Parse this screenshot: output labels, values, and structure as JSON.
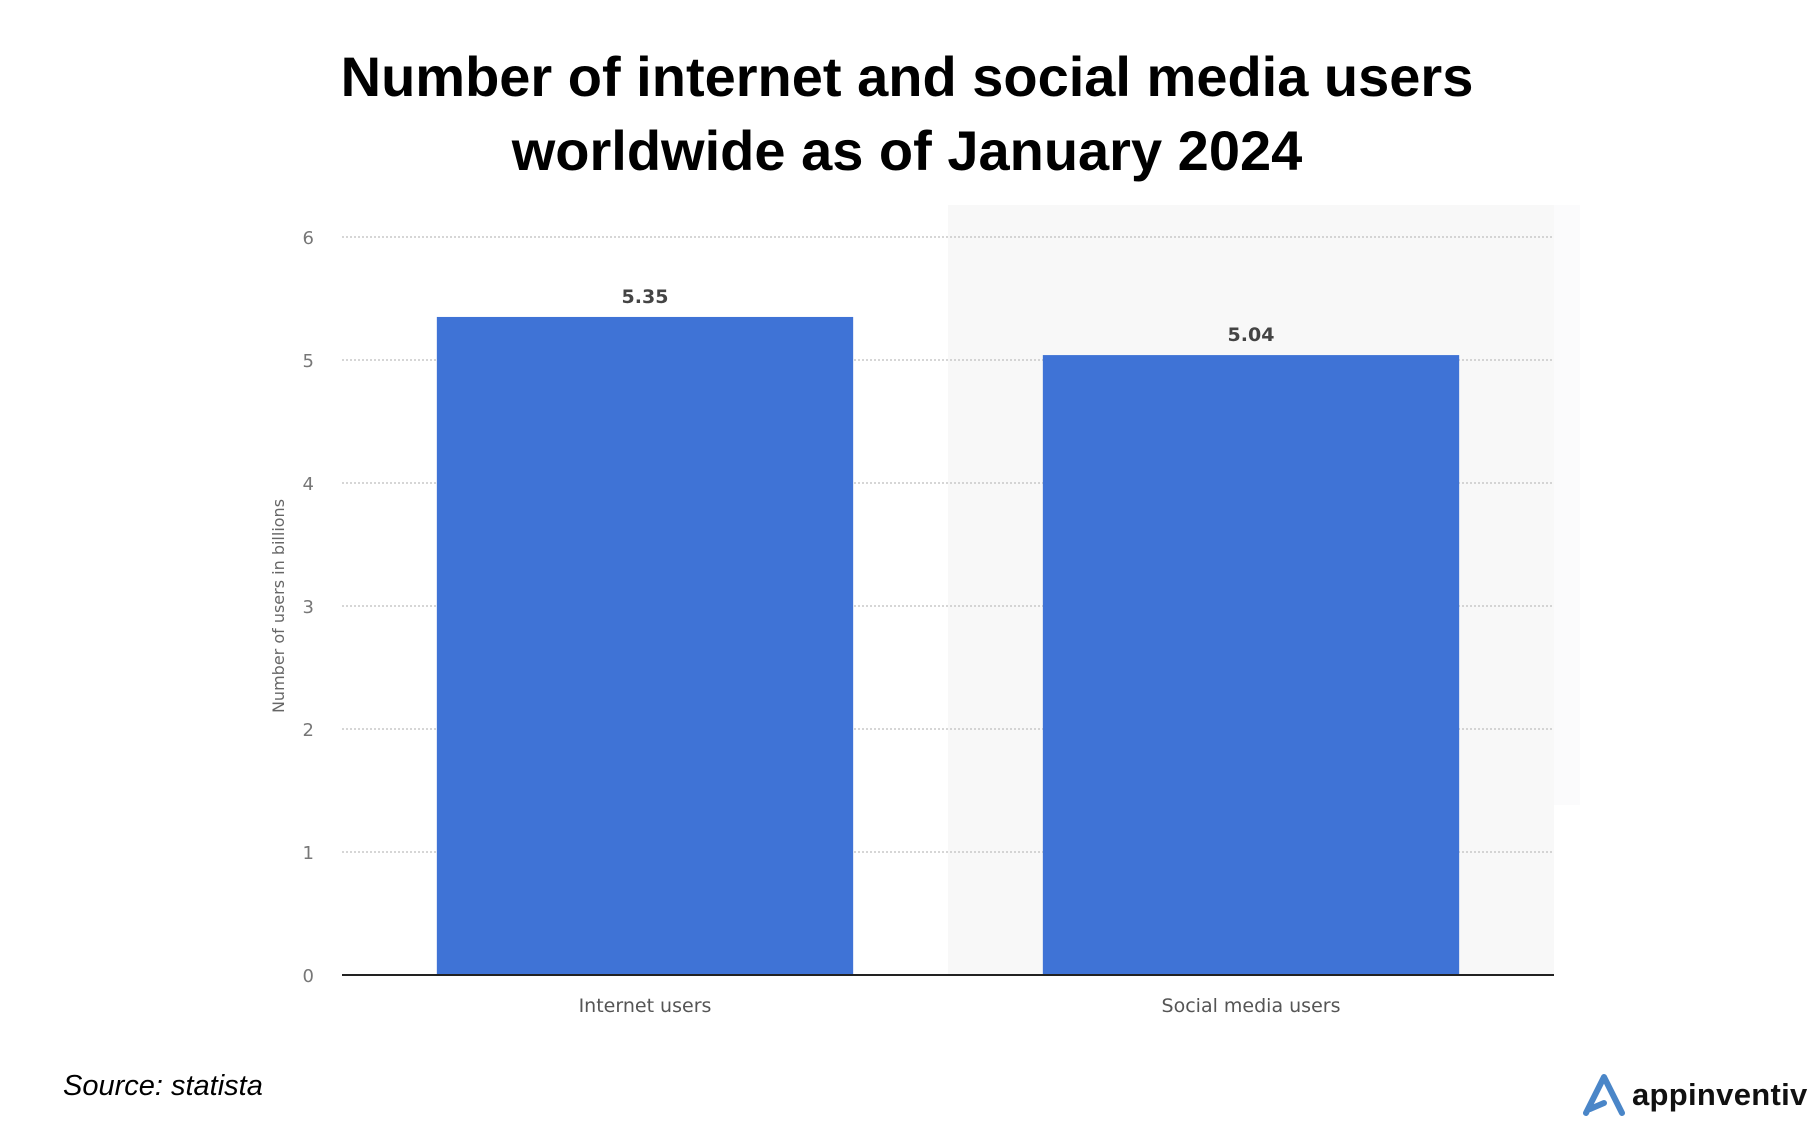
{
  "chart_data": {
    "type": "bar",
    "title_lines": [
      "Number of internet and social media users",
      "worldwide as of January 2024"
    ],
    "categories": [
      "Internet users",
      "Social media users"
    ],
    "values": [
      5.35,
      5.04
    ],
    "value_labels": [
      "5.35",
      "5.04"
    ],
    "xlabel": "",
    "ylabel": "Number of users in billions",
    "ylim": [
      0,
      6
    ],
    "yticks": [
      "0",
      "1",
      "2",
      "3",
      "4",
      "5",
      "6"
    ],
    "grid": true,
    "bar_color": "#3f73d6"
  },
  "footer": {
    "source": "Source: statista",
    "brand": "appinventiv",
    "brand_color": "#4a86c8"
  }
}
